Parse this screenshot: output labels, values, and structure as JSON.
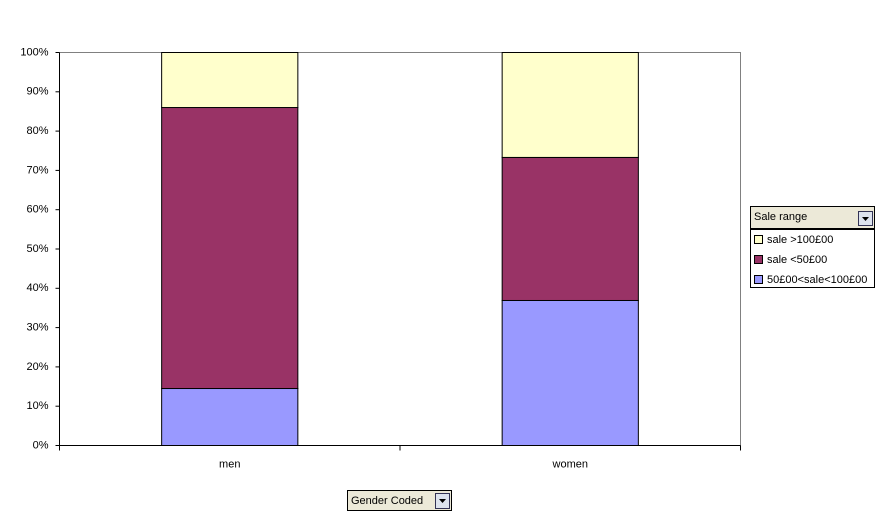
{
  "chart_data": {
    "type": "bar",
    "stacked": true,
    "categories": [
      "men",
      "women"
    ],
    "series": [
      {
        "name": "50£00<sale<100£00",
        "color": "#9999ff",
        "values": [
          14.5,
          36.9
        ]
      },
      {
        "name": "sale <50£00",
        "color": "#993366",
        "values": [
          71.5,
          36.4
        ]
      },
      {
        "name": "sale >100£00",
        "color": "#ffffcc",
        "values": [
          14.0,
          26.7
        ]
      }
    ],
    "ylim": [
      0,
      100
    ],
    "yticks": [
      {
        "value": 0,
        "label": "0%"
      },
      {
        "value": 10,
        "label": "10%"
      },
      {
        "value": 20,
        "label": "20%"
      },
      {
        "value": 30,
        "label": "30%"
      },
      {
        "value": 40,
        "label": "40%"
      },
      {
        "value": 50,
        "label": "50%"
      },
      {
        "value": 60,
        "label": "60%"
      },
      {
        "value": 70,
        "label": "70%"
      },
      {
        "value": 80,
        "label": "80%"
      },
      {
        "value": 90,
        "label": "90%"
      },
      {
        "value": 100,
        "label": "100%"
      }
    ],
    "legend_title": "Sale range",
    "x_field": "Gender Coded",
    "legend": "right"
  }
}
